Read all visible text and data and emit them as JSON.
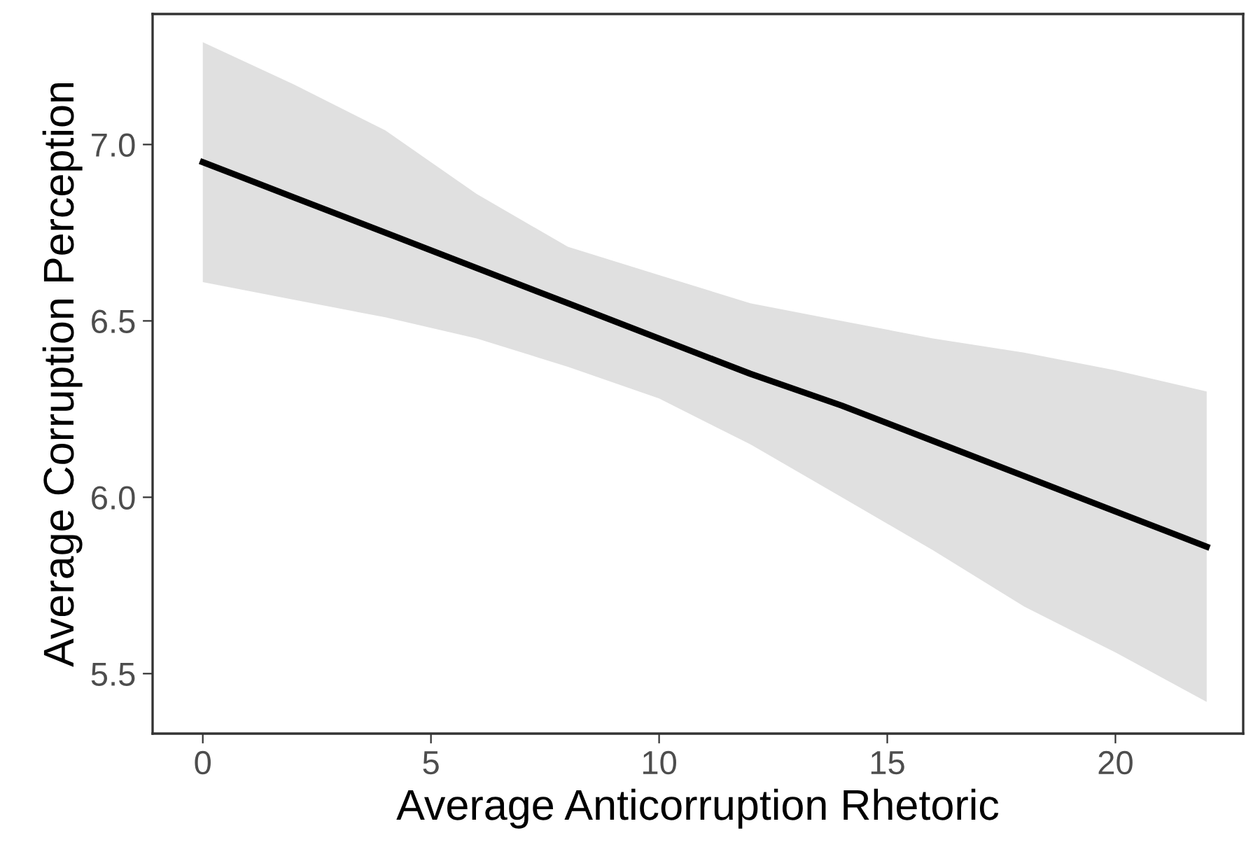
{
  "chart_data": {
    "type": "line",
    "xlabel": "Average Anticorruption Rhetoric",
    "ylabel": "Average Corruption Perception",
    "xlim": [
      -1.1,
      22.8
    ],
    "ylim": [
      5.33,
      7.37
    ],
    "xticks": [
      0,
      5,
      10,
      15,
      20
    ],
    "yticks": [
      {
        "value": 5.5,
        "label": "5.5"
      },
      {
        "value": 6.0,
        "label": "6.0"
      },
      {
        "value": 6.5,
        "label": "6.5"
      },
      {
        "value": 7.0,
        "label": "7.0"
      }
    ],
    "grid": false,
    "legend": false,
    "marker": "none",
    "line_style": "solid",
    "series": [
      {
        "color": "#000000",
        "x": [
          0,
          2,
          4,
          6,
          8,
          10,
          12,
          14,
          16,
          18,
          20,
          22
        ],
        "values": [
          6.95,
          6.85,
          6.75,
          6.65,
          6.55,
          6.45,
          6.35,
          6.26,
          6.16,
          6.06,
          5.96,
          5.86
        ],
        "upper": [
          7.29,
          7.17,
          7.04,
          6.86,
          6.71,
          6.63,
          6.55,
          6.5,
          6.45,
          6.41,
          6.36,
          6.3
        ],
        "lower": [
          6.61,
          6.56,
          6.51,
          6.45,
          6.37,
          6.28,
          6.15,
          6.0,
          5.85,
          5.69,
          5.56,
          5.42
        ]
      }
    ]
  }
}
